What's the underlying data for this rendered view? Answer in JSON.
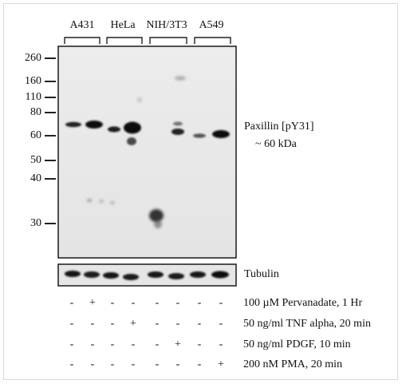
{
  "lanes": [
    "A431",
    "HeLa",
    "NIH/3T3",
    "A549"
  ],
  "markers": [
    {
      "label": "260",
      "kda": 260
    },
    {
      "label": "160",
      "kda": 160
    },
    {
      "label": "110",
      "kda": 110
    },
    {
      "label": "80",
      "kda": 80
    },
    {
      "label": "60",
      "kda": 60
    },
    {
      "label": "50",
      "kda": 50
    },
    {
      "label": "40",
      "kda": 40
    },
    {
      "label": "30",
      "kda": 30
    }
  ],
  "band_label": {
    "name": "Paxillin  [pY31]",
    "size": "~ 60 kDa"
  },
  "loading_control": "Tubulin",
  "treatments": [
    {
      "label": "100 µM Pervanadate, 1 Hr",
      "signs": [
        "-",
        "+",
        "-",
        "-",
        "-",
        "-",
        "-",
        "-"
      ]
    },
    {
      "label": "50 ng/ml  TNF alpha, 20 min",
      "signs": [
        "-",
        "-",
        "-",
        "+",
        "-",
        "-",
        "-",
        "-"
      ]
    },
    {
      "label": "50 ng/ml  PDGF, 10 min",
      "signs": [
        "-",
        "-",
        "-",
        "-",
        "-",
        "+",
        "-",
        "-"
      ]
    },
    {
      "label": "200 nM PMA, 20 min",
      "signs": [
        "-",
        "-",
        "-",
        "-",
        "-",
        "-",
        "-",
        "+"
      ]
    }
  ],
  "colors": {
    "membrane": "#e9e9e9",
    "band": "#141414",
    "text": "#111111"
  }
}
